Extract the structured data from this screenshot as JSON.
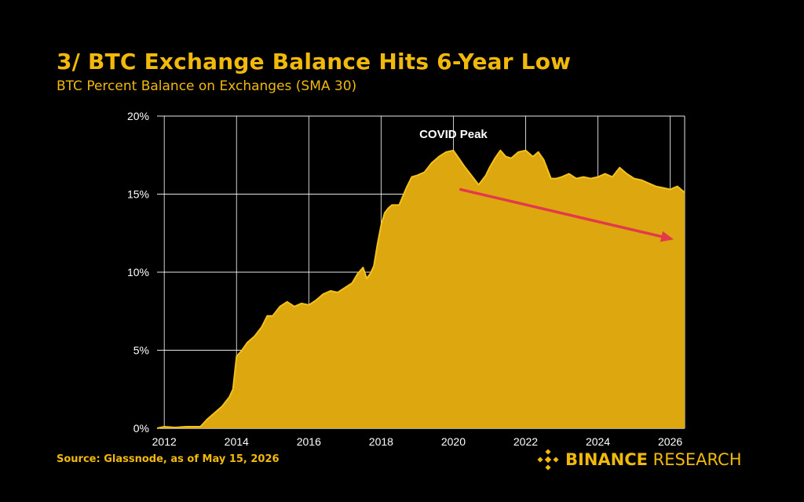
{
  "header": {
    "title": "3/ BTC Exchange Balance Hits 6-Year Low",
    "subtitle": "BTC Percent Balance on Exchanges (SMA 30)"
  },
  "footer": {
    "source": "Source: Glassnode, as of May 15, 2026",
    "brand_bold": "BINANCE",
    "brand_light": " RESEARCH"
  },
  "colors": {
    "accent": "#F0B90B",
    "area_fill": "#DDA70F",
    "area_line": "#F3C21C",
    "arrow": "#E2394B",
    "grid": "#FFFFFF",
    "background": "#000000"
  },
  "chart_data": {
    "type": "area",
    "annotation": "COVID Peak",
    "grid": true,
    "xlim": [
      2011.8,
      2026.4
    ],
    "ylim": [
      0,
      20
    ],
    "x_ticks": [
      "2012",
      "2014",
      "2016",
      "2018",
      "2020",
      "2022",
      "2024",
      "2026"
    ],
    "y_ticks": [
      "0%",
      "5%",
      "10%",
      "15%",
      "20%"
    ],
    "trend_arrow": {
      "from": [
        2020.2,
        15.3
      ],
      "to": [
        2026.4,
        12.1
      ]
    },
    "series": [
      {
        "x": [
          2011.8,
          2012.0,
          2012.3,
          2012.6,
          2013.0,
          2013.2,
          2013.4,
          2013.6,
          2013.8,
          2013.9,
          2014.0,
          2014.15,
          2014.3,
          2014.5,
          2014.7,
          2014.85,
          2015.0,
          2015.2,
          2015.4,
          2015.6,
          2015.8,
          2016.0,
          2016.2,
          2016.4,
          2016.6,
          2016.8,
          2017.0,
          2017.2,
          2017.35,
          2017.5,
          2017.6,
          2017.7,
          2017.8,
          2017.9,
          2018.0,
          2018.1,
          2018.2,
          2018.3,
          2018.5,
          2018.7,
          2018.85,
          2019.0,
          2019.2,
          2019.4,
          2019.6,
          2019.8,
          2020.0,
          2020.15,
          2020.3,
          2020.5,
          2020.7,
          2020.9,
          2021.0,
          2021.15,
          2021.3,
          2021.45,
          2021.6,
          2021.8,
          2022.0,
          2022.2,
          2022.35,
          2022.5,
          2022.7,
          2022.85,
          2023.0,
          2023.2,
          2023.4,
          2023.6,
          2023.8,
          2024.0,
          2024.2,
          2024.4,
          2024.6,
          2024.8,
          2025.0,
          2025.2,
          2025.4,
          2025.6,
          2025.8,
          2026.0,
          2026.2,
          2026.4
        ],
        "values": [
          0.0,
          0.1,
          0.05,
          0.1,
          0.1,
          0.6,
          1.0,
          1.4,
          2.0,
          2.5,
          4.6,
          5.0,
          5.5,
          5.9,
          6.5,
          7.2,
          7.2,
          7.8,
          8.1,
          7.8,
          8.0,
          7.9,
          8.2,
          8.6,
          8.8,
          8.7,
          9.0,
          9.3,
          9.9,
          10.3,
          9.6,
          9.9,
          10.4,
          11.8,
          13.0,
          13.8,
          14.1,
          14.3,
          14.3,
          15.4,
          16.1,
          16.2,
          16.4,
          17.0,
          17.4,
          17.7,
          17.8,
          17.3,
          16.8,
          16.2,
          15.6,
          16.2,
          16.7,
          17.3,
          17.8,
          17.4,
          17.3,
          17.7,
          17.8,
          17.4,
          17.7,
          17.2,
          16.0,
          16.0,
          16.1,
          16.3,
          16.0,
          16.1,
          16.0,
          16.1,
          16.3,
          16.1,
          16.7,
          16.3,
          16.0,
          15.9,
          15.7,
          15.5,
          15.4,
          15.3,
          15.5,
          15.1
        ]
      }
    ]
  }
}
